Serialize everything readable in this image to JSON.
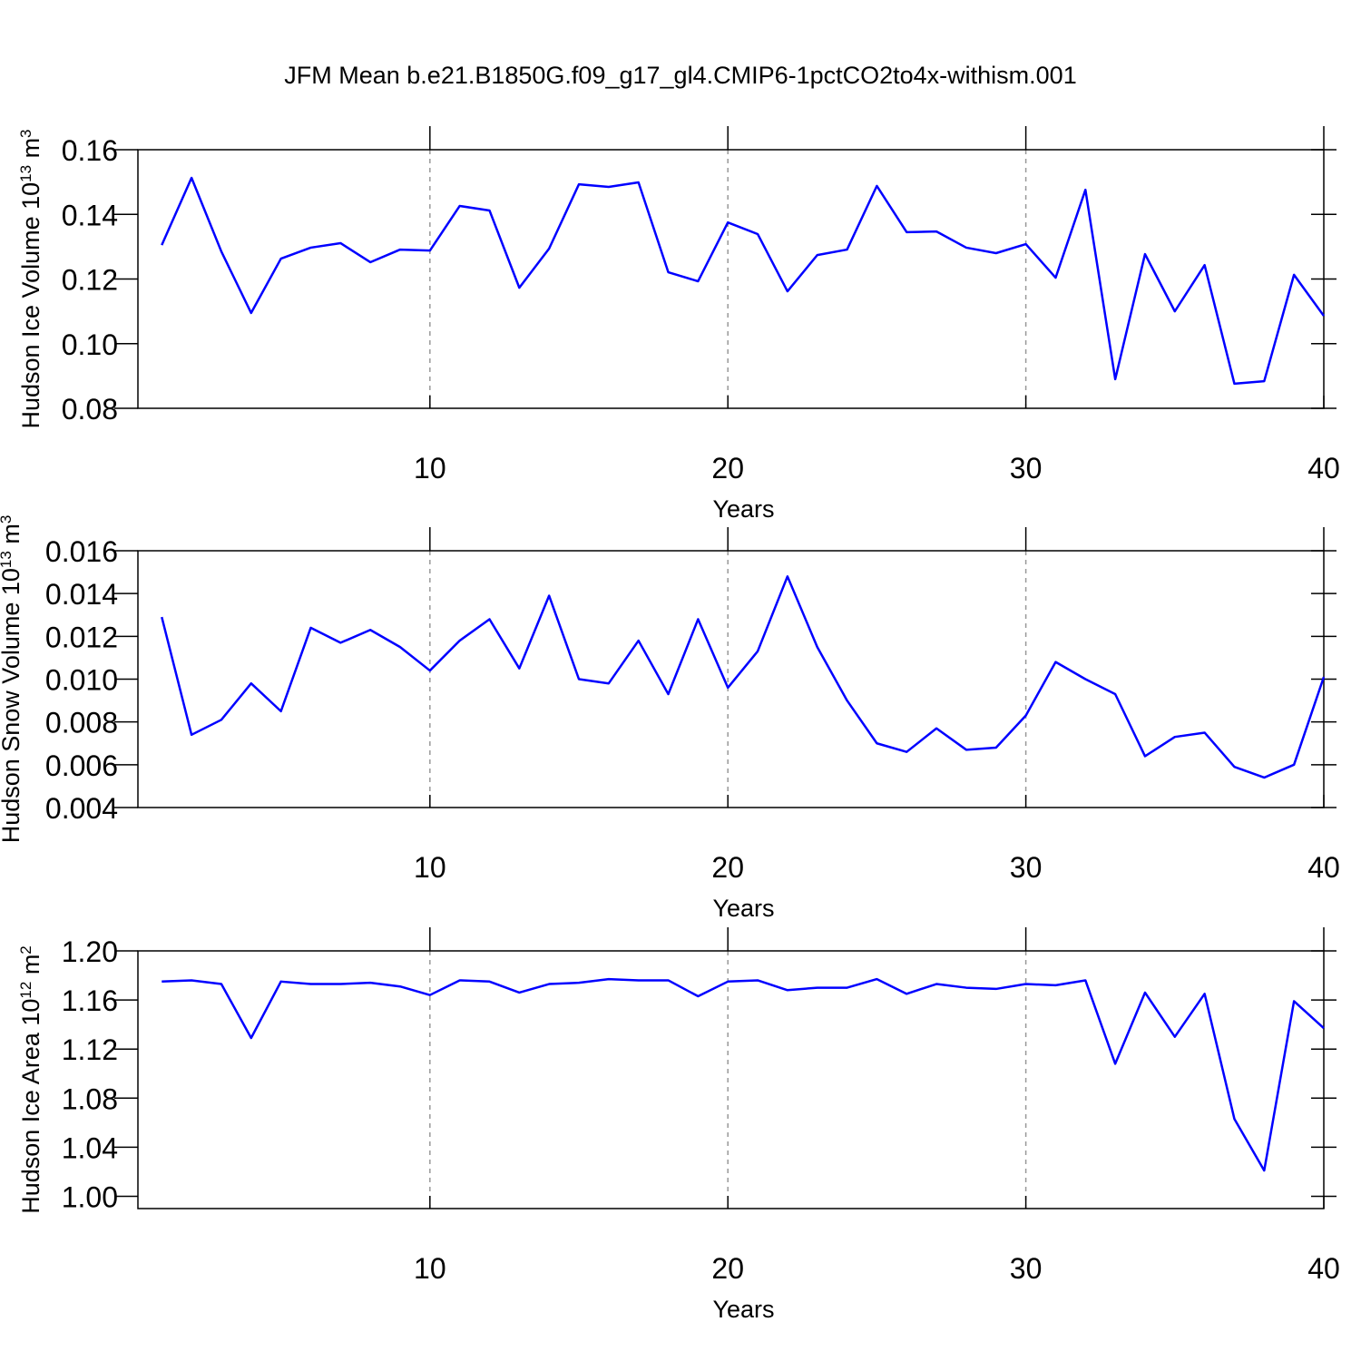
{
  "title": "JFM Mean b.e21.B1850G.f09_g17_gl4.CMIP6-1pctCO2to4x-withism.001",
  "chart_data": [
    {
      "type": "line",
      "ylabel": [
        "Hudson Ice Volume 10",
        "13",
        " m",
        "3"
      ],
      "xlabel": "Years",
      "x": [
        1,
        2,
        3,
        4,
        5,
        6,
        7,
        8,
        9,
        10,
        11,
        12,
        13,
        14,
        15,
        16,
        17,
        18,
        19,
        20,
        21,
        22,
        23,
        24,
        25,
        26,
        27,
        28,
        29,
        30,
        31,
        32,
        33,
        34,
        35,
        36,
        37,
        38,
        39,
        40
      ],
      "series": [
        {
          "color": "#0000ff",
          "values": [
            0.1305,
            0.1513,
            0.1285,
            0.1095,
            0.1263,
            0.1297,
            0.1311,
            0.1252,
            0.1291,
            0.1288,
            0.1426,
            0.1412,
            0.1173,
            0.1294,
            0.1493,
            0.1485,
            0.1499,
            0.1221,
            0.1193,
            0.1375,
            0.1339,
            0.1162,
            0.1274,
            0.1291,
            0.1488,
            0.1345,
            0.1347,
            0.1297,
            0.128,
            0.1308,
            0.1204,
            0.1476,
            0.089,
            0.1277,
            0.11,
            0.1243,
            0.0876,
            0.0884,
            0.1213,
            0.1086
          ]
        }
      ],
      "xlim": [
        0.2,
        40
      ],
      "ylim": [
        0.08,
        0.16
      ],
      "xticks": [
        10,
        20,
        30,
        40
      ],
      "yticks": [
        0.08,
        {
          "value": 0.1,
          "label": "0.10"
        },
        0.12,
        0.14,
        0.16
      ],
      "grid": true
    },
    {
      "type": "line",
      "ylabel": [
        "Hudson Snow Volume 10",
        "13",
        " m",
        "3"
      ],
      "xlabel": "Years",
      "x": [
        1,
        2,
        3,
        4,
        5,
        6,
        7,
        8,
        9,
        10,
        11,
        12,
        13,
        14,
        15,
        16,
        17,
        18,
        19,
        20,
        21,
        22,
        23,
        24,
        25,
        26,
        27,
        28,
        29,
        30,
        31,
        32,
        33,
        34,
        35,
        36,
        37,
        38,
        39,
        40
      ],
      "series": [
        {
          "color": "#0000ff",
          "values": [
            0.0129,
            0.0074,
            0.0081,
            0.0098,
            0.0085,
            0.0124,
            0.0117,
            0.0123,
            0.0115,
            0.0104,
            0.0118,
            0.0128,
            0.0105,
            0.0139,
            0.01,
            0.0098,
            0.0118,
            0.0093,
            0.0128,
            0.0096,
            0.0113,
            0.0148,
            0.0115,
            0.009,
            0.007,
            0.0066,
            0.0077,
            0.0067,
            0.0068,
            0.0083,
            0.0108,
            0.01,
            0.0093,
            0.0064,
            0.0073,
            0.0075,
            0.0059,
            0.0054,
            0.006,
            0.0101
          ]
        }
      ],
      "xlim": [
        0.2,
        40
      ],
      "ylim": [
        0.004,
        0.016
      ],
      "xticks": [
        10,
        20,
        30,
        40
      ],
      "yticks": [
        0.004,
        0.006,
        0.008,
        {
          "value": 0.01,
          "label": "0.010"
        },
        0.012,
        0.014,
        0.016
      ],
      "grid": true
    },
    {
      "type": "line",
      "ylabel": [
        "Hudson Ice Area 10",
        "12",
        " m",
        "2"
      ],
      "xlabel": "Years",
      "x": [
        1,
        2,
        3,
        4,
        5,
        6,
        7,
        8,
        9,
        10,
        11,
        12,
        13,
        14,
        15,
        16,
        17,
        18,
        19,
        20,
        21,
        22,
        23,
        24,
        25,
        26,
        27,
        28,
        29,
        30,
        31,
        32,
        33,
        34,
        35,
        36,
        37,
        38,
        39,
        40
      ],
      "series": [
        {
          "color": "#0000ff",
          "values": [
            1.175,
            1.176,
            1.173,
            1.129,
            1.175,
            1.173,
            1.173,
            1.174,
            1.171,
            1.164,
            1.176,
            1.175,
            1.166,
            1.173,
            1.174,
            1.177,
            1.176,
            1.176,
            1.163,
            1.175,
            1.176,
            1.168,
            1.17,
            1.17,
            1.177,
            1.165,
            1.173,
            1.17,
            1.169,
            1.173,
            1.172,
            1.176,
            1.108,
            1.166,
            1.13,
            1.165,
            1.063,
            1.021,
            1.159,
            1.137
          ]
        }
      ],
      "xlim": [
        0.2,
        40
      ],
      "ylim": [
        0.99,
        1.2
      ],
      "xticks": [
        10,
        20,
        30,
        40
      ],
      "yticks": [
        {
          "value": 1,
          "label": "1.00"
        },
        1.04,
        1.08,
        1.12,
        1.16,
        {
          "value": 1.2,
          "label": "1.20"
        }
      ],
      "grid": true
    }
  ]
}
